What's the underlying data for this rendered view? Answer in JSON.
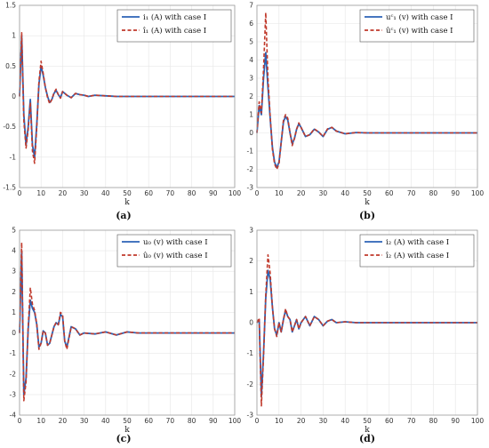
{
  "colors": {
    "actual": "#2b63b6",
    "estimate": "#c0392b"
  },
  "chart_data": [
    {
      "type": "line",
      "caption": "(a)",
      "xlabel": "k",
      "xlim": [
        0,
        100
      ],
      "ylim": [
        -1.5,
        1.5
      ],
      "xticks": [
        "0",
        "10",
        "20",
        "30",
        "40",
        "50",
        "60",
        "70",
        "80",
        "90",
        "100"
      ],
      "yticks": [
        "1.5",
        "1",
        "0.5",
        "0",
        "-0.5",
        "-1",
        "-1.5"
      ],
      "grid": true,
      "legend": "top-right",
      "series": [
        {
          "name": "i₁ (A) with case I",
          "style": "solid",
          "x": [
            0,
            1,
            2,
            3,
            4,
            5,
            6,
            7,
            8,
            9,
            10,
            11,
            12,
            13,
            14,
            15,
            16,
            17,
            18,
            19,
            20,
            22,
            24,
            26,
            28,
            30,
            32,
            35,
            40,
            45,
            50,
            60,
            70,
            80,
            90,
            100
          ],
          "y": [
            0,
            1.0,
            -0.3,
            -0.8,
            -0.5,
            -0.05,
            -0.8,
            -1.0,
            -0.45,
            0.2,
            0.5,
            0.35,
            0.15,
            0,
            -0.1,
            -0.05,
            0.05,
            0.1,
            0.03,
            -0.02,
            0.08,
            0.02,
            -0.02,
            0.05,
            0.03,
            0.02,
            0,
            0.02,
            0.01,
            0,
            0,
            0,
            0,
            0,
            0,
            0
          ]
        },
        {
          "name": "î₁ (A) with case I",
          "style": "dashed",
          "x": [
            0,
            1,
            2,
            3,
            4,
            5,
            6,
            7,
            8,
            9,
            10,
            11,
            12,
            13,
            14,
            15,
            16,
            17,
            18,
            19,
            20,
            22,
            24,
            26,
            28,
            30,
            32,
            35,
            40,
            45,
            50,
            60,
            70,
            80,
            90,
            100
          ],
          "y": [
            0,
            1.05,
            -0.4,
            -0.85,
            -0.55,
            -0.1,
            -0.9,
            -1.1,
            -0.5,
            0.25,
            0.58,
            0.38,
            0.15,
            -0.02,
            -0.12,
            -0.05,
            0.06,
            0.12,
            0.03,
            -0.03,
            0.08,
            0.02,
            -0.02,
            0.05,
            0.03,
            0.02,
            0,
            0.02,
            0.01,
            0,
            0,
            0,
            0,
            0,
            0,
            0
          ]
        }
      ]
    },
    {
      "type": "line",
      "caption": "(b)",
      "xlabel": "k",
      "xlim": [
        0,
        100
      ],
      "ylim": [
        -3,
        7
      ],
      "xticks": [
        "0",
        "10",
        "20",
        "30",
        "40",
        "50",
        "60",
        "70",
        "80",
        "90",
        "100"
      ],
      "yticks": [
        "7",
        "6",
        "5",
        "4",
        "3",
        "2",
        "1",
        "0",
        "-1",
        "-2",
        "-3"
      ],
      "grid": true,
      "legend": "top-right",
      "series": [
        {
          "name": "uᶜ₁ (v) with case I",
          "style": "solid",
          "x": [
            0,
            1,
            2,
            3,
            4,
            5,
            6,
            7,
            8,
            9,
            10,
            11,
            12,
            13,
            14,
            15,
            16,
            17,
            18,
            19,
            20,
            22,
            24,
            26,
            28,
            30,
            32,
            34,
            36,
            40,
            45,
            50,
            60,
            70,
            80,
            90,
            100
          ],
          "y": [
            0,
            1.5,
            1.0,
            3.0,
            4.4,
            2.5,
            0.8,
            -0.8,
            -1.6,
            -1.9,
            -1.6,
            -0.5,
            0.6,
            0.9,
            0.7,
            0,
            -0.6,
            -0.3,
            0.2,
            0.5,
            0.3,
            -0.2,
            -0.1,
            0.2,
            0.05,
            -0.2,
            0.2,
            0.3,
            0.1,
            -0.05,
            0.02,
            0,
            0,
            0,
            0,
            0,
            0
          ]
        },
        {
          "name": "ûᶜ₁ (v) with case I",
          "style": "dashed",
          "x": [
            0,
            1,
            2,
            3,
            4,
            5,
            6,
            7,
            8,
            9,
            10,
            11,
            12,
            13,
            14,
            15,
            16,
            17,
            18,
            19,
            20,
            22,
            24,
            26,
            28,
            30,
            32,
            34,
            36,
            40,
            45,
            50,
            60,
            70,
            80,
            90,
            100
          ],
          "y": [
            0,
            1.7,
            1.1,
            3.5,
            6.6,
            3.0,
            0.9,
            -0.9,
            -1.7,
            -2.0,
            -1.7,
            -0.5,
            0.7,
            1.0,
            0.8,
            0,
            -0.7,
            -0.3,
            0.2,
            0.55,
            0.3,
            -0.2,
            -0.1,
            0.22,
            0.05,
            -0.2,
            0.22,
            0.3,
            0.1,
            -0.05,
            0.02,
            0,
            0,
            0,
            0,
            0,
            0
          ]
        }
      ]
    },
    {
      "type": "line",
      "caption": "(c)",
      "xlabel": "k",
      "xlim": [
        0,
        100
      ],
      "ylim": [
        -4,
        5
      ],
      "xticks": [
        "0",
        "10",
        "20",
        "30",
        "40",
        "50",
        "60",
        "70",
        "80",
        "90",
        "100"
      ],
      "yticks": [
        "5",
        "4",
        "3",
        "2",
        "1",
        "0",
        "-1",
        "-2",
        "-3",
        "-4"
      ],
      "grid": true,
      "legend": "top-right",
      "series": [
        {
          "name": "u₀ (v) with case I",
          "style": "solid",
          "x": [
            0,
            1,
            2,
            3,
            4,
            5,
            6,
            7,
            8,
            9,
            10,
            11,
            12,
            13,
            14,
            15,
            16,
            17,
            18,
            19,
            20,
            21,
            22,
            24,
            26,
            28,
            30,
            35,
            40,
            45,
            50,
            55,
            60,
            70,
            80,
            90,
            100
          ],
          "y": [
            0,
            4.0,
            -3.0,
            -2.2,
            0.2,
            1.6,
            1.2,
            1.0,
            0.4,
            -0.7,
            -0.5,
            0.1,
            0,
            -0.6,
            -0.5,
            -0.1,
            0.3,
            0.5,
            0.4,
            0.9,
            0.8,
            -0.4,
            -0.7,
            0.3,
            0.2,
            -0.1,
            0,
            -0.05,
            0.05,
            -0.1,
            0.05,
            0,
            0,
            0,
            0,
            0,
            0
          ]
        },
        {
          "name": "û₀ (v) with case I",
          "style": "dashed",
          "x": [
            0,
            1,
            2,
            3,
            4,
            5,
            6,
            7,
            8,
            9,
            10,
            11,
            12,
            13,
            14,
            15,
            16,
            17,
            18,
            19,
            20,
            21,
            22,
            24,
            26,
            28,
            30,
            35,
            40,
            45,
            50,
            55,
            60,
            70,
            80,
            90,
            100
          ],
          "y": [
            0,
            4.4,
            -3.3,
            -2.4,
            0.3,
            2.2,
            1.4,
            1.1,
            0.4,
            -0.8,
            -0.5,
            0.1,
            0,
            -0.6,
            -0.5,
            -0.1,
            0.3,
            0.5,
            0.4,
            1.0,
            0.9,
            -0.4,
            -0.8,
            0.3,
            0.2,
            -0.1,
            0,
            -0.05,
            0.05,
            -0.1,
            0.05,
            0,
            0,
            0,
            0,
            0,
            0
          ]
        }
      ]
    },
    {
      "type": "line",
      "caption": "(d)",
      "xlabel": "k",
      "xlim": [
        0,
        100
      ],
      "ylim": [
        -3,
        3
      ],
      "xticks": [
        "0",
        "10",
        "20",
        "30",
        "40",
        "50",
        "60",
        "70",
        "80",
        "90",
        "100"
      ],
      "yticks": [
        "3",
        "2",
        "1",
        "0",
        "-1",
        "-2",
        "-3"
      ],
      "grid": true,
      "legend": "top-right",
      "series": [
        {
          "name": "i₂ (A) with case I",
          "style": "solid",
          "x": [
            0,
            1,
            2,
            3,
            4,
            5,
            6,
            7,
            8,
            9,
            10,
            11,
            12,
            13,
            14,
            15,
            16,
            17,
            18,
            19,
            20,
            22,
            24,
            26,
            28,
            30,
            32,
            34,
            36,
            40,
            45,
            50,
            60,
            70,
            80,
            90,
            100
          ],
          "y": [
            0,
            0.1,
            -2.4,
            -1.0,
            0.8,
            1.7,
            1.4,
            0.5,
            -0.2,
            -0.4,
            0,
            -0.3,
            0.1,
            0.4,
            0.2,
            0.1,
            -0.3,
            -0.1,
            0.1,
            -0.2,
            0,
            0.2,
            -0.1,
            0.2,
            0.1,
            -0.1,
            0.05,
            0.1,
            0,
            0.03,
            0,
            0,
            0,
            0,
            0,
            0,
            0
          ]
        },
        {
          "name": "î₂ (A) with case I",
          "style": "dashed",
          "x": [
            0,
            1,
            2,
            3,
            4,
            5,
            6,
            7,
            8,
            9,
            10,
            11,
            12,
            13,
            14,
            15,
            16,
            17,
            18,
            19,
            20,
            22,
            24,
            26,
            28,
            30,
            32,
            34,
            36,
            40,
            45,
            50,
            60,
            70,
            80,
            90,
            100
          ],
          "y": [
            0,
            0.15,
            -2.7,
            -1.1,
            0.9,
            2.2,
            1.6,
            0.5,
            -0.2,
            -0.45,
            0,
            -0.3,
            0.1,
            0.45,
            0.2,
            0.1,
            -0.3,
            -0.1,
            0.1,
            -0.2,
            0,
            0.2,
            -0.1,
            0.2,
            0.1,
            -0.1,
            0.05,
            0.1,
            0,
            0.03,
            0,
            0,
            0,
            0,
            0,
            0,
            0
          ]
        }
      ]
    }
  ]
}
